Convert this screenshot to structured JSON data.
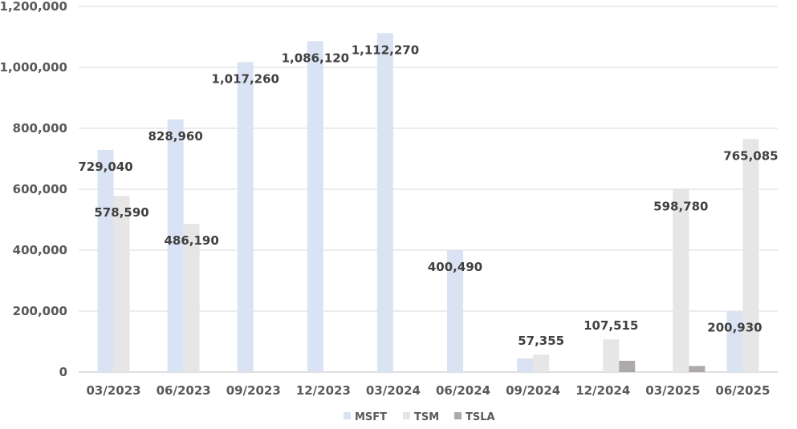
{
  "chart_data": {
    "type": "bar",
    "categories": [
      "03/2023",
      "06/2023",
      "09/2023",
      "12/2023",
      "03/2024",
      "06/2024",
      "09/2024",
      "12/2024",
      "03/2025",
      "06/2025"
    ],
    "series": [
      {
        "name": "MSFT",
        "color": "#dae3f3",
        "values": [
          729040,
          828960,
          1017260,
          1086120,
          1112270,
          400490,
          45000,
          0,
          0,
          200930
        ]
      },
      {
        "name": "TSM",
        "color": "#e7e6e6",
        "values": [
          578590,
          486190,
          0,
          0,
          0,
          0,
          57355,
          107515,
          598780,
          765085
        ]
      },
      {
        "name": "TSLA",
        "color": "#aeaaaa",
        "values": [
          0,
          0,
          0,
          0,
          0,
          0,
          0,
          37000,
          20000,
          0
        ]
      }
    ],
    "data_labels": [
      {
        "series": 0,
        "index": 0,
        "text": "729,040"
      },
      {
        "series": 1,
        "index": 0,
        "text": "578,590"
      },
      {
        "series": 0,
        "index": 1,
        "text": "828,960"
      },
      {
        "series": 1,
        "index": 1,
        "text": "486,190"
      },
      {
        "series": 0,
        "index": 2,
        "text": "1,017,260"
      },
      {
        "series": 0,
        "index": 3,
        "text": "1,086,120"
      },
      {
        "series": 0,
        "index": 4,
        "text": "1,112,270"
      },
      {
        "series": 0,
        "index": 5,
        "text": "400,490"
      },
      {
        "series": 1,
        "index": 6,
        "text": "57,355"
      },
      {
        "series": 1,
        "index": 7,
        "text": "107,515"
      },
      {
        "series": 1,
        "index": 8,
        "text": "598,780"
      },
      {
        "series": 1,
        "index": 9,
        "text": "765,085"
      },
      {
        "series": 0,
        "index": 9,
        "text": "200,930"
      }
    ],
    "yticks": [
      "0",
      "200,000",
      "400,000",
      "600,000",
      "800,000",
      "1,000,000",
      "1,200,000"
    ],
    "ylim": [
      0,
      1200000
    ],
    "grid": true,
    "legend_position": "bottom",
    "xlabel": "",
    "ylabel": ""
  }
}
